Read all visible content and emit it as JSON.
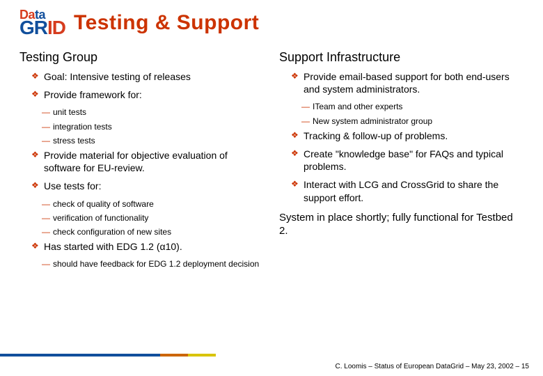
{
  "logo": {
    "top": "Data",
    "bottom": "GRID"
  },
  "title": "Testing & Support",
  "left": {
    "heading": "Testing Group",
    "items": [
      {
        "text": "Goal: Intensive testing of releases"
      },
      {
        "text": "Provide framework for:",
        "sub": [
          "unit tests",
          "integration tests",
          "stress tests"
        ]
      },
      {
        "text": "Provide material for objective evaluation of software for EU-review."
      },
      {
        "text": "Use tests for:",
        "sub": [
          "check of quality of software",
          "verification of functionality",
          "check configuration of new sites"
        ]
      },
      {
        "text": "Has started with EDG 1.2 (α10).",
        "sub": [
          "should have feedback for EDG 1.2 deployment decision"
        ]
      }
    ]
  },
  "right": {
    "heading": "Support Infrastructure",
    "items": [
      {
        "text": "Provide email-based support for both end-users and system administrators.",
        "sub": [
          "ITeam and other experts",
          "New system administrator group"
        ]
      },
      {
        "text": "Tracking & follow-up of problems."
      },
      {
        "text": "Create \"knowledge base\" for FAQs and typical problems."
      },
      {
        "text": "Interact with LCG and CrossGrid to share the support effort."
      }
    ],
    "closing": "System in place shortly; fully functional for Testbed 2."
  },
  "footer": "C. Loomis – Status of European DataGrid – May 23, 2002 – 15",
  "colors": {
    "accent": "#cc3300",
    "bar_blue": "#114f9c",
    "bar_orange": "#cc6600",
    "bar_yellow": "#d9c400",
    "background": "#ffffff"
  }
}
